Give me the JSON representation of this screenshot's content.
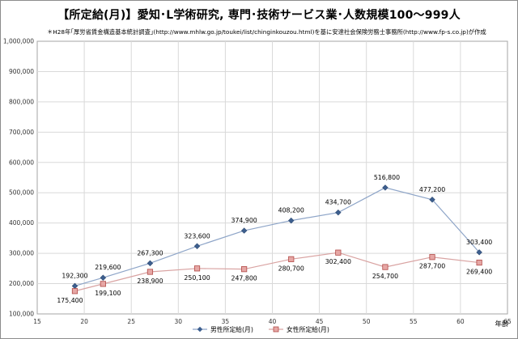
{
  "chart_data": {
    "type": "line",
    "title": "【所定給(月)】愛知･L学術研究, 専門･技術サービス業･人数規模100～999人",
    "subtitle": "＊H28年｢厚労省賃金構造基本統計調査｣(http://www.mhlw.go.jp/toukei/list/chinginkouzou.html)を基に安達社会保険労務士事務所(http://www.fp-s.co.jp)が作成",
    "xlabel": "年齢",
    "ylabel": "",
    "xlim": [
      15,
      65
    ],
    "ylim": [
      100000,
      1000000
    ],
    "xticks": [
      "15",
      "20",
      "25",
      "30",
      "35",
      "40",
      "45",
      "50",
      "55",
      "60",
      "65"
    ],
    "yticks": [
      "100,000",
      "200,000",
      "300,000",
      "400,000",
      "500,000",
      "600,000",
      "700,000",
      "800,000",
      "900,000",
      "1,000,000"
    ],
    "grid": true,
    "legend": "bottom",
    "series": [
      {
        "name": "男性所定給(月)",
        "color": "#4a6fa5",
        "marker": "diamond",
        "x": [
          19,
          22,
          27,
          32,
          37,
          42,
          47,
          52,
          57,
          62
        ],
        "values": [
          192300,
          219600,
          267300,
          323600,
          374900,
          408200,
          434700,
          516800,
          477200,
          303400
        ],
        "labels": [
          "192,300",
          "219,600",
          "267,300",
          "323,600",
          "374,900",
          "408,200",
          "434,700",
          "516,800",
          "477,200",
          "303,400"
        ]
      },
      {
        "name": "女性所定給(月)",
        "color": "#c0504d",
        "marker": "square",
        "x": [
          19,
          22,
          27,
          32,
          37,
          42,
          47,
          52,
          57,
          62
        ],
        "values": [
          175400,
          199100,
          238900,
          250100,
          247800,
          280700,
          302400,
          254700,
          287700,
          269400
        ],
        "labels": [
          "175,400",
          "199,100",
          "238,900",
          "250,100",
          "247,800",
          "280,700",
          "302,400",
          "254,700",
          "287,700",
          "269,400"
        ]
      }
    ]
  }
}
